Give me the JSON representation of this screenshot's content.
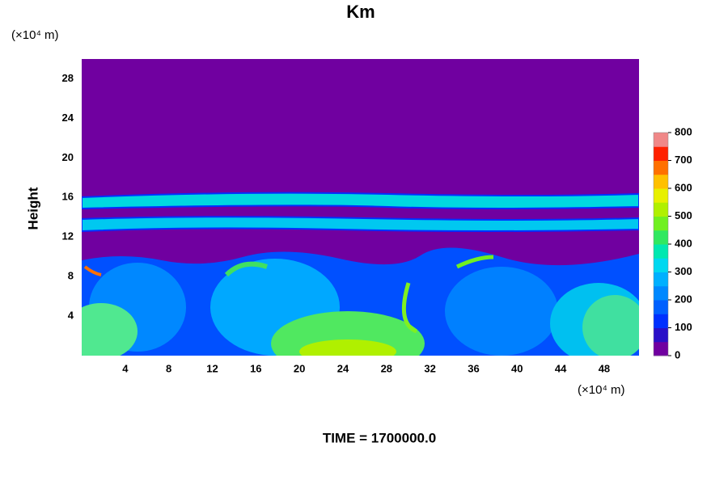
{
  "chart_data": {
    "type": "heatmap",
    "title": "Km",
    "ylabel": "Height",
    "y_unit": "(×10⁴ m)",
    "x_unit": "(×10⁴ m)",
    "footer": "TIME = 1700000.0",
    "xlim": [
      0,
      51.2
    ],
    "xticks": [
      4,
      8,
      12,
      16,
      20,
      24,
      28,
      32,
      36,
      40,
      44,
      48
    ],
    "ylim": [
      0,
      30
    ],
    "yticks": [
      4,
      8,
      12,
      16,
      20,
      24,
      28
    ],
    "colorbar": {
      "lim": [
        0,
        800
      ],
      "ticks": [
        0,
        100,
        200,
        300,
        400,
        500,
        600,
        700,
        800
      ],
      "colors": [
        "#7000a0",
        "#2a10c8",
        "#0030ff",
        "#0060ff",
        "#0088ff",
        "#00b0ff",
        "#00d8f0",
        "#00e8b0",
        "#30e860",
        "#70f020",
        "#b0f000",
        "#e8f000",
        "#ffc000",
        "#ff7000",
        "#ff2000",
        "#f08888"
      ]
    }
  }
}
